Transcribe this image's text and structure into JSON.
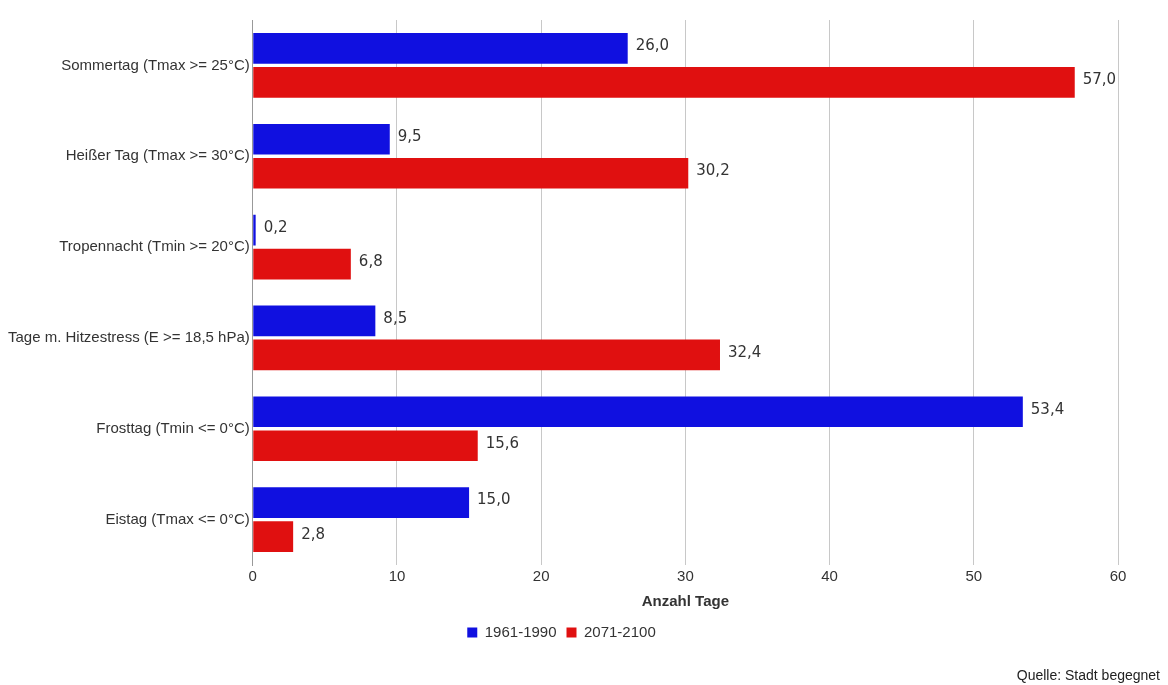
{
  "chart_data": {
    "type": "bar",
    "orientation": "horizontal",
    "xlabel": "Anzahl Tage",
    "categories": [
      "Sommertag (Tmax >= 25°C)",
      "Heißer Tag (Tmax >= 30°C)",
      "Tropennacht (Tmin >= 20°C)",
      "Tage m. Hitzestress (E >= 18,5 hPa)",
      "Frosttag (Tmin <= 0°C)",
      "Eistag (Tmax <= 0°C)"
    ],
    "series": [
      {
        "name": "1961-1990",
        "color": "#1010e0",
        "values": [
          26.0,
          9.5,
          0.2,
          8.5,
          53.4,
          15.0
        ],
        "value_labels": [
          "26,0",
          "9,5",
          "0,2",
          "8,5",
          "53,4",
          "15,0"
        ]
      },
      {
        "name": "2071-2100",
        "color": "#e01010",
        "values": [
          57.0,
          30.2,
          6.8,
          32.4,
          15.6,
          2.8
        ],
        "value_labels": [
          "57,0",
          "30,2",
          "6,8",
          "32,4",
          "15,6",
          "2,8"
        ]
      }
    ],
    "xlim": [
      0,
      60
    ],
    "xticks": [
      0,
      10,
      20,
      30,
      40,
      50,
      60
    ],
    "grid": "x",
    "legend": "bottom",
    "annotations": [
      "Quelle: Stadt begegnet"
    ]
  }
}
